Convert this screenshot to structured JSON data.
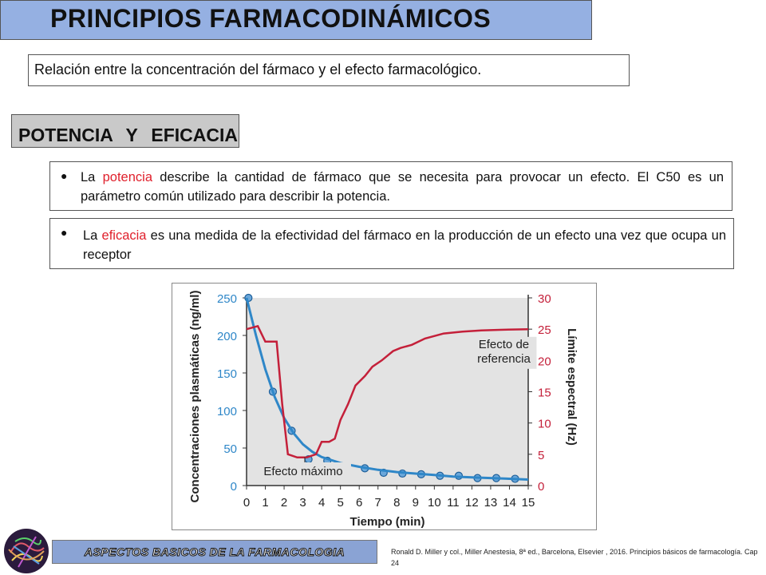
{
  "slide": {
    "title": "PRINCIPIOS FARMACODINÁMICOS",
    "subtitle": "Relación entre la concentración del fármaco y el efecto farmacológico.",
    "section_title": "POTENCIA Y EFICACIA",
    "bullet1": {
      "before": "La ",
      "keyword": "potencia",
      "after": " describe la cantidad de fármaco que se necesita para provocar un efecto. El C50 es un parámetro común utilizado para describir la potencia."
    },
    "bullet2": {
      "before": "La ",
      "keyword": "eficacia",
      "after": " es una medida de la efectividad del fármaco en la producción de un efecto una vez que ocupa un receptor"
    },
    "footer_banner": "ASPECTOS BASICOS DE LA FARMACOLOGIA",
    "citation": "Ronald D. Miller y col., Miller Anestesia, 8ª ed., Barcelona, Elsevier , 2016. Principios básicos de farmacología. Cap 24"
  },
  "colors": {
    "concentration_series": "#2f87c8",
    "spectral_series": "#c4203a",
    "keyword": "#e0202c",
    "title_fill": "#95b0e2",
    "section_fill": "#c9c9c9"
  },
  "chart_data": {
    "type": "line",
    "xlabel": "Tiempo (min)",
    "ylabel": "Concentraciones plasmáticas (ng/ml)",
    "y2label": "Límite espectral (Hz)",
    "xlim": [
      0,
      15
    ],
    "ylim": [
      0,
      250
    ],
    "y2lim": [
      0,
      30
    ],
    "x_ticks": [
      0,
      1,
      2,
      3,
      4,
      5,
      6,
      7,
      8,
      9,
      10,
      11,
      12,
      13,
      14,
      15
    ],
    "y_ticks": [
      0,
      50,
      100,
      150,
      200,
      250
    ],
    "y2_ticks": [
      0,
      5,
      10,
      15,
      20,
      25,
      30
    ],
    "series": [
      {
        "axis": "left",
        "style": "points",
        "x": [
          0.1,
          1.4,
          2.4,
          3.3,
          4.3,
          5.3,
          6.3,
          7.3,
          8.3,
          9.3,
          10.3,
          11.3,
          12.3,
          13.3,
          14.3
        ],
        "values": [
          250,
          125,
          73,
          35,
          33,
          25,
          23,
          17,
          16,
          15,
          13,
          13,
          10,
          10,
          9
        ]
      },
      {
        "axis": "left",
        "style": "curve",
        "x": [
          0,
          0.5,
          1,
          1.5,
          2,
          2.5,
          3,
          3.5,
          4,
          5,
          6,
          7,
          8,
          9,
          10,
          11,
          12,
          13,
          14,
          15
        ],
        "values": [
          250,
          200,
          155,
          118,
          90,
          70,
          55,
          45,
          38,
          30,
          25,
          21,
          18,
          16,
          14,
          12,
          11,
          10,
          9,
          8
        ]
      },
      {
        "axis": "right",
        "style": "line",
        "x": [
          0,
          0.6,
          1.0,
          1.6,
          1.9,
          2.2,
          2.7,
          3.2,
          3.7,
          4.0,
          4.4,
          4.7,
          5.0,
          5.4,
          5.8,
          6.3,
          6.7,
          7.2,
          7.8,
          8.2,
          8.8,
          9.5,
          10.5,
          11.5,
          12.5,
          13.5,
          15
        ],
        "values": [
          25,
          25.5,
          23,
          23,
          13,
          5,
          4.5,
          4.5,
          5,
          7,
          7,
          7.5,
          10.5,
          13,
          16,
          17.5,
          19,
          20,
          21.5,
          22,
          22.5,
          23.5,
          24.3,
          24.6,
          24.8,
          24.9,
          25
        ]
      }
    ],
    "annotations": [
      {
        "text": "Efecto máximo",
        "x": 3.1,
        "y": 0
      },
      {
        "text_line1": "Efecto de",
        "text_line2": "referencia",
        "x": 12.3,
        "y2": 23
      }
    ]
  }
}
